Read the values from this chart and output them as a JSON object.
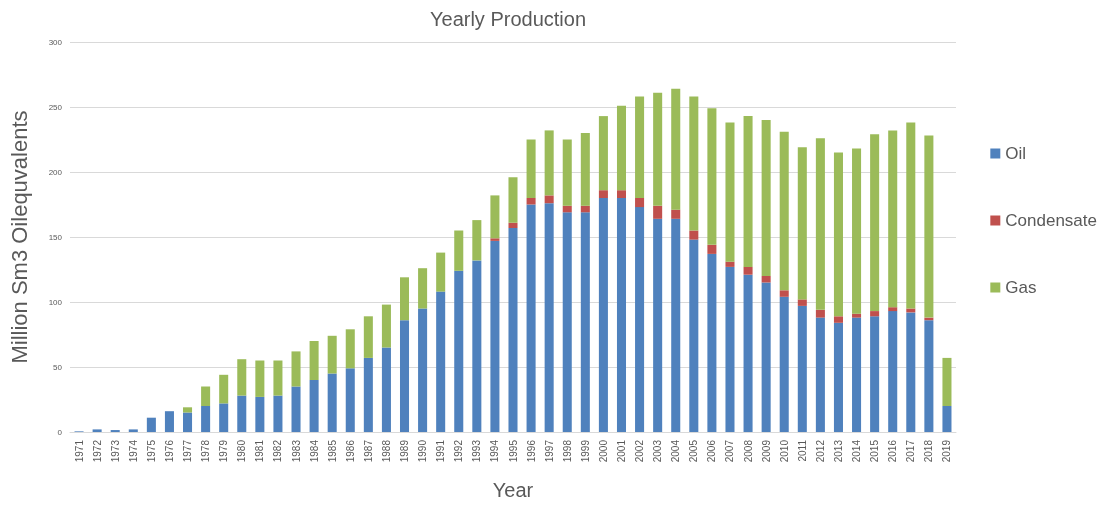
{
  "chart_data": {
    "type": "bar",
    "title": "Yearly Production",
    "xlabel": "Year",
    "ylabel": "Million Sm3 Oilequvalents",
    "categories": [
      "1971",
      "1972",
      "1973",
      "1974",
      "1975",
      "1976",
      "1977",
      "1978",
      "1979",
      "1980",
      "1981",
      "1982",
      "1983",
      "1984",
      "1985",
      "1986",
      "1987",
      "1988",
      "1989",
      "1990",
      "1991",
      "1992",
      "1993",
      "1994",
      "1995",
      "1996",
      "1997",
      "1998",
      "1999",
      "2000",
      "2001",
      "2002",
      "2003",
      "2004",
      "2005",
      "2006",
      "2007",
      "2008",
      "2009",
      "2010",
      "2011",
      "2012",
      "2013",
      "2014",
      "2015",
      "2016",
      "2017",
      "2018",
      "2019"
    ],
    "stacked": true,
    "series": [
      {
        "name": "Oil",
        "color": "#4f81bd",
        "values": [
          0.5,
          2,
          1.5,
          2,
          11,
          16,
          15,
          20,
          22,
          28,
          27,
          28,
          35,
          40,
          45,
          49,
          57,
          65,
          86,
          95,
          108,
          124,
          132,
          147,
          157,
          175,
          176,
          169,
          169,
          180,
          180,
          173,
          164,
          164,
          148,
          137,
          127,
          121,
          115,
          104,
          97,
          88,
          84,
          88,
          89,
          93,
          92,
          86,
          20
        ]
      },
      {
        "name": "Condensate",
        "color": "#c0504d",
        "values": [
          0,
          0,
          0,
          0,
          0,
          0,
          0,
          0,
          0,
          0,
          0,
          0,
          0,
          0,
          0,
          0,
          0,
          0,
          0,
          0,
          0,
          0,
          0,
          2,
          4,
          5,
          6,
          5,
          5,
          6,
          6,
          7,
          10,
          7,
          7,
          7,
          4,
          6,
          5,
          5,
          5,
          6,
          5,
          3,
          4,
          3,
          3,
          2,
          0
        ]
      },
      {
        "name": "Gas",
        "color": "#9bbb59",
        "values": [
          0,
          0,
          0,
          0,
          0,
          0,
          4,
          15,
          22,
          28,
          28,
          27,
          27,
          30,
          29,
          30,
          32,
          33,
          33,
          31,
          30,
          31,
          31,
          33,
          35,
          45,
          50,
          51,
          56,
          57,
          65,
          78,
          87,
          93,
          103,
          105,
          107,
          116,
          120,
          122,
          117,
          132,
          126,
          127,
          136,
          136,
          143,
          140,
          37
        ]
      }
    ],
    "ylim": [
      0,
      300
    ],
    "yticks": [
      0,
      50,
      100,
      150,
      200,
      250,
      300
    ],
    "grid": "y",
    "legend": "right"
  }
}
